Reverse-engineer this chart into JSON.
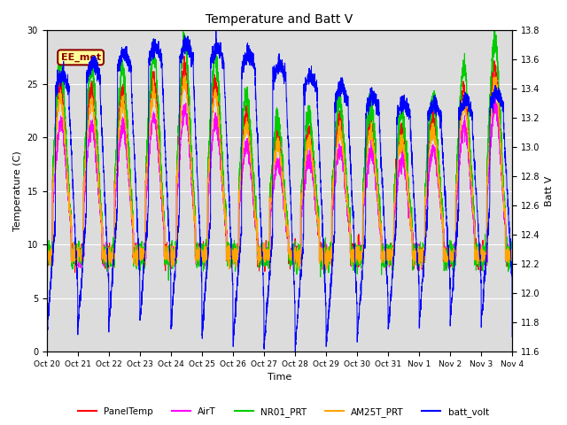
{
  "title": "Temperature and Batt V",
  "ylabel_left": "Temperature (C)",
  "ylabel_right": "Batt V",
  "xlabel": "Time",
  "ylim_left": [
    0,
    30
  ],
  "ylim_right": [
    11.6,
    13.8
  ],
  "yticks_left": [
    0,
    5,
    10,
    15,
    20,
    25,
    30
  ],
  "yticks_right": [
    11.6,
    11.8,
    12.0,
    12.2,
    12.4,
    12.6,
    12.8,
    13.0,
    13.2,
    13.4,
    13.6,
    13.8
  ],
  "annotation_text": "EE_met",
  "annotation_color": "#8B0000",
  "annotation_bg": "#FFFF99",
  "background_color": "#DCDCDC",
  "fig_bg": "#FFFFFF",
  "series_colors": {
    "PanelTemp": "#FF0000",
    "AirT": "#FF00FF",
    "NR01_PRT": "#00CC00",
    "AM25T_PRT": "#FFA500",
    "batt_volt": "#0000FF"
  },
  "n_days": 15,
  "xtick_labels": [
    "Oct 20",
    "Oct 21",
    "Oct 22",
    "Oct 23",
    "Oct 24",
    "Oct 25",
    "Oct 26",
    "Oct 27",
    "Oct 28",
    "Oct 29",
    "Oct 30",
    "Oct 31",
    "Nov 1",
    "Nov 2",
    "Nov 3",
    "Nov 4"
  ]
}
